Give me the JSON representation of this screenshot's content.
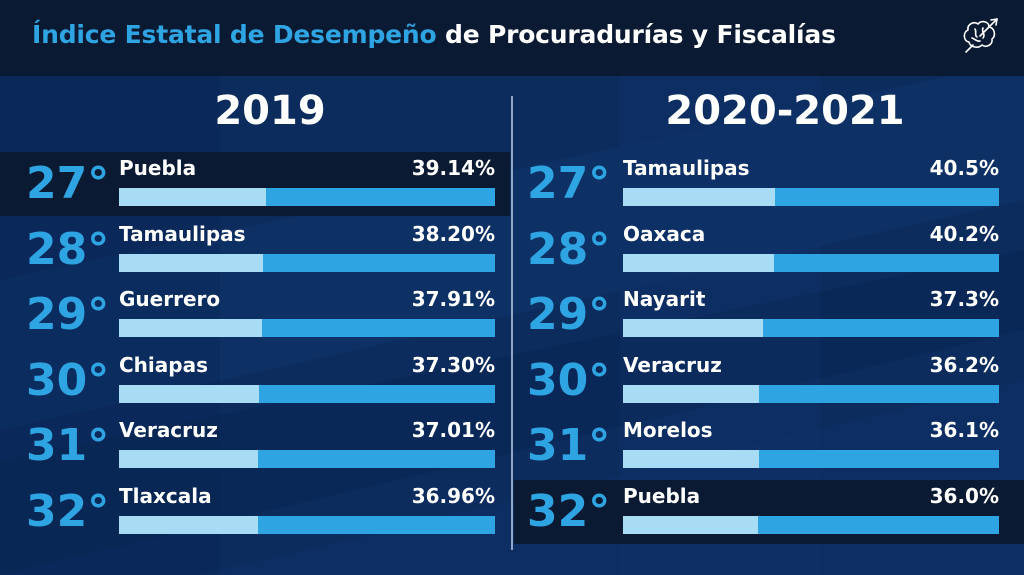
{
  "header": {
    "title_highlight": "Índice Estatal de Desempeño",
    "title_rest": " de Procuradurías y Fiscalías",
    "logo_icon": "brain-arrow-icon"
  },
  "colors": {
    "accent": "#2ea4e2",
    "bar_fill": "#a8dcf4",
    "header_bg": "#0b1a33",
    "background": "#0c2c5e"
  },
  "chart_data": [
    {
      "type": "bar",
      "title": "2019",
      "ranks": [
        "27°",
        "28°",
        "29°",
        "30°",
        "31°",
        "32°"
      ],
      "categories": [
        "Puebla",
        "Tamaulipas",
        "Guerrero",
        "Chiapas",
        "Veracruz",
        "Tlaxcala"
      ],
      "values": [
        39.14,
        38.2,
        37.91,
        37.3,
        37.01,
        36.96
      ],
      "value_labels": [
        "39.14%",
        "38.20%",
        "37.91%",
        "37.30%",
        "37.01%",
        "36.96%"
      ],
      "xlim": [
        0,
        100
      ],
      "highlighted": "Puebla"
    },
    {
      "type": "bar",
      "title": "2020-2021",
      "ranks": [
        "27°",
        "28°",
        "29°",
        "30°",
        "31°",
        "32°"
      ],
      "categories": [
        "Tamaulipas",
        "Oaxaca",
        "Nayarit",
        "Veracruz",
        "Morelos",
        "Puebla"
      ],
      "values": [
        40.5,
        40.2,
        37.3,
        36.2,
        36.1,
        36.0
      ],
      "value_labels": [
        "40.5%",
        "40.2%",
        "37.3%",
        "36.2%",
        "36.1%",
        "36.0%"
      ],
      "xlim": [
        0,
        100
      ],
      "highlighted": "Puebla"
    }
  ]
}
